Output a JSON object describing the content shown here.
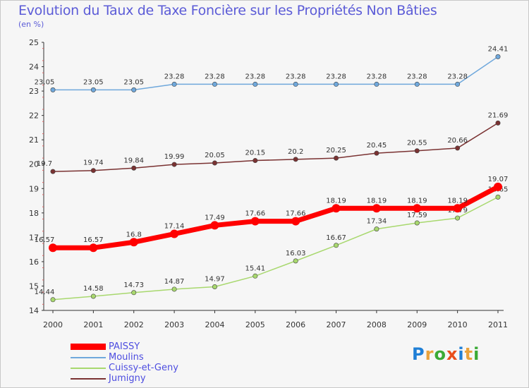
{
  "title": "Evolution du Taux de Taxe Foncière sur les Propriétés Non Bâties",
  "unit": "(en %)",
  "logo": {
    "text": "Proxiti",
    "colors": [
      "#1f7fd6",
      "#e9a23b",
      "#3aaa35",
      "#e94e1b",
      "#1f7fd6",
      "#e9a23b",
      "#3aaa35"
    ]
  },
  "chart_data": {
    "type": "line",
    "x": [
      "2000",
      "2001",
      "2002",
      "2003",
      "2004",
      "2005",
      "2006",
      "2007",
      "2008",
      "2009",
      "2010",
      "2011"
    ],
    "ylim": [
      14,
      25
    ],
    "yticks": [
      "14",
      "15",
      "16",
      "17",
      "18",
      "19",
      "20",
      "21",
      "22",
      "23",
      "24",
      "25"
    ],
    "grid": false,
    "legend_placement": "bottom-left",
    "series": [
      {
        "name": "PAISSY",
        "color": "#ff0000",
        "values": [
          16.57,
          16.57,
          16.8,
          17.14,
          17.49,
          17.66,
          17.66,
          18.19,
          18.19,
          18.19,
          18.19,
          19.07
        ],
        "labels": [
          "16.57",
          "16.57",
          "16.8",
          "17.14",
          "17.49",
          "17.66",
          "17.66",
          "18.19",
          "18.19",
          "18.19",
          "18.19",
          "19.07"
        ]
      },
      {
        "name": "Moulins",
        "color": "#6fa8dc",
        "values": [
          23.05,
          23.05,
          23.05,
          23.28,
          23.28,
          23.28,
          23.28,
          23.28,
          23.28,
          23.28,
          23.28,
          24.41
        ],
        "labels": [
          "23.05",
          "23.05",
          "23.05",
          "23.28",
          "23.28",
          "23.28",
          "23.28",
          "23.28",
          "23.28",
          "23.28",
          "23.28",
          "24.41"
        ]
      },
      {
        "name": "Cuissy-et-Geny",
        "color": "#a8d86e",
        "values": [
          14.44,
          14.58,
          14.73,
          14.87,
          14.97,
          15.41,
          16.03,
          16.67,
          17.34,
          17.59,
          17.79,
          18.65
        ],
        "labels": [
          "14.44",
          "14.58",
          "14.73",
          "14.87",
          "14.97",
          "15.41",
          "16.03",
          "16.67",
          "17.34",
          "17.59",
          "17.79",
          "18.65"
        ]
      },
      {
        "name": "Jumigny",
        "color": "#7a3232",
        "values": [
          19.7,
          19.74,
          19.84,
          19.99,
          20.05,
          20.15,
          20.2,
          20.25,
          20.45,
          20.55,
          20.66,
          21.69
        ],
        "labels": [
          "19.7",
          "19.74",
          "19.84",
          "19.99",
          "20.05",
          "20.15",
          "20.2",
          "20.25",
          "20.45",
          "20.55",
          "20.66",
          "21.69"
        ]
      }
    ]
  }
}
